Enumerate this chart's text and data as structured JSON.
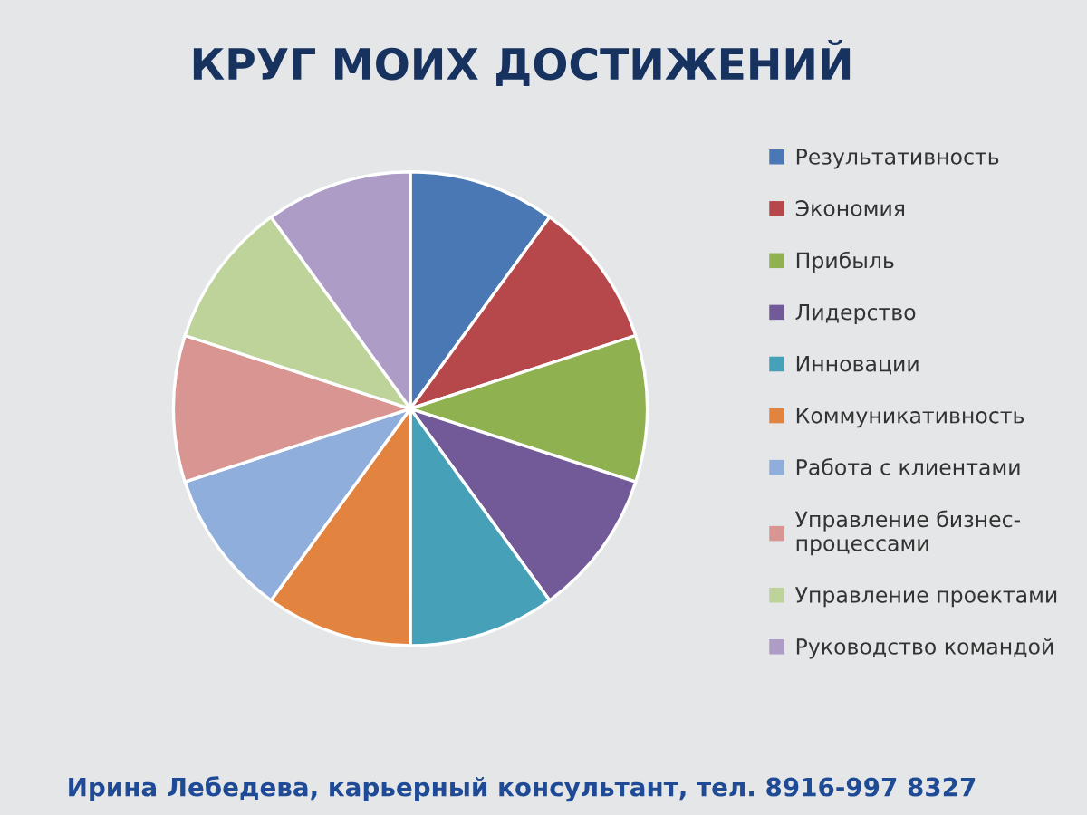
{
  "chart_data": {
    "type": "pie",
    "title": "КРУГ МОИХ ДОСТИЖЕНИЙ",
    "categories": [
      "Результативность",
      "Экономия",
      "Прибыль",
      "Лидерство",
      "Инновации",
      "Коммуникативность",
      "Работа с клиентами",
      "Управление бизнес-процессами",
      "Управление проектами",
      "Руководство командой"
    ],
    "values": [
      10,
      10,
      10,
      10,
      10,
      10,
      10,
      10,
      10,
      10
    ],
    "colors": [
      "#4a78b5",
      "#b6474a",
      "#8fb14f",
      "#725a98",
      "#45a0b8",
      "#e2843f",
      "#8faedb",
      "#d99592",
      "#bdd39a",
      "#ac9cc6"
    ],
    "legend": "right",
    "annotations": [
      "Ирина Лебедева, карьерный консультант, тел. 8916-997 8327"
    ]
  }
}
